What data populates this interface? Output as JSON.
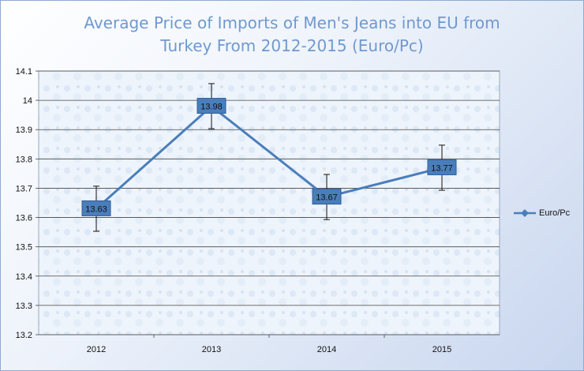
{
  "chart_data": {
    "type": "line",
    "title_lines": [
      "Average Price of Imports of Men's Jeans into EU from",
      "Turkey From 2012-2015 (Euro/Pc)"
    ],
    "categories": [
      "2012",
      "2013",
      "2014",
      "2015"
    ],
    "series": [
      {
        "name": "Euro/Pc",
        "values": [
          13.63,
          13.98,
          13.67,
          13.77
        ],
        "error": [
          0.077,
          0.077,
          0.077,
          0.077
        ],
        "color": "#4a7ebb"
      }
    ],
    "ylim": [
      13.2,
      14.1
    ],
    "yticks": [
      "13.2",
      "13.3",
      "13.4",
      "13.5",
      "13.6",
      "13.7",
      "13.8",
      "13.9",
      "14",
      "14.1"
    ],
    "grid": true,
    "data_labels": [
      "13.63",
      "13.98",
      "13.67",
      "13.77"
    ],
    "legend_position": "right"
  }
}
